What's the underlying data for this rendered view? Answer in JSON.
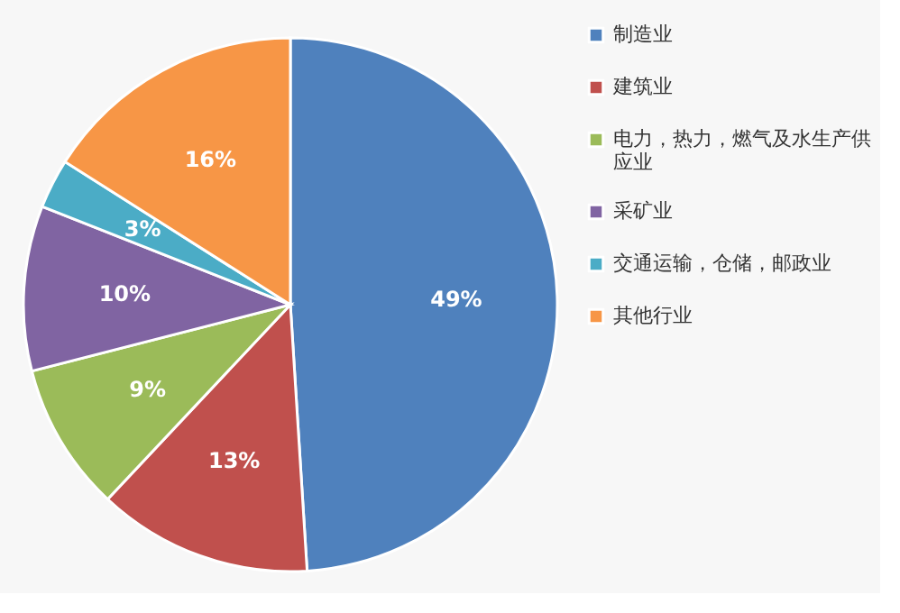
{
  "chart_data": {
    "type": "pie",
    "categories": [
      "制造业",
      "建筑业",
      "电力，热力，燃气及水生产供应业",
      "采矿业",
      "交通运输，仓储，邮政业",
      "其他行业"
    ],
    "values": [
      49,
      13,
      9,
      10,
      3,
      16
    ],
    "colors": [
      "#4f81bd",
      "#c0504d",
      "#9bbb59",
      "#8064a2",
      "#4bacc6",
      "#f79646"
    ],
    "value_labels": [
      "49%",
      "13%",
      "9%",
      "10%",
      "3%",
      "16%"
    ],
    "legend": "right"
  }
}
